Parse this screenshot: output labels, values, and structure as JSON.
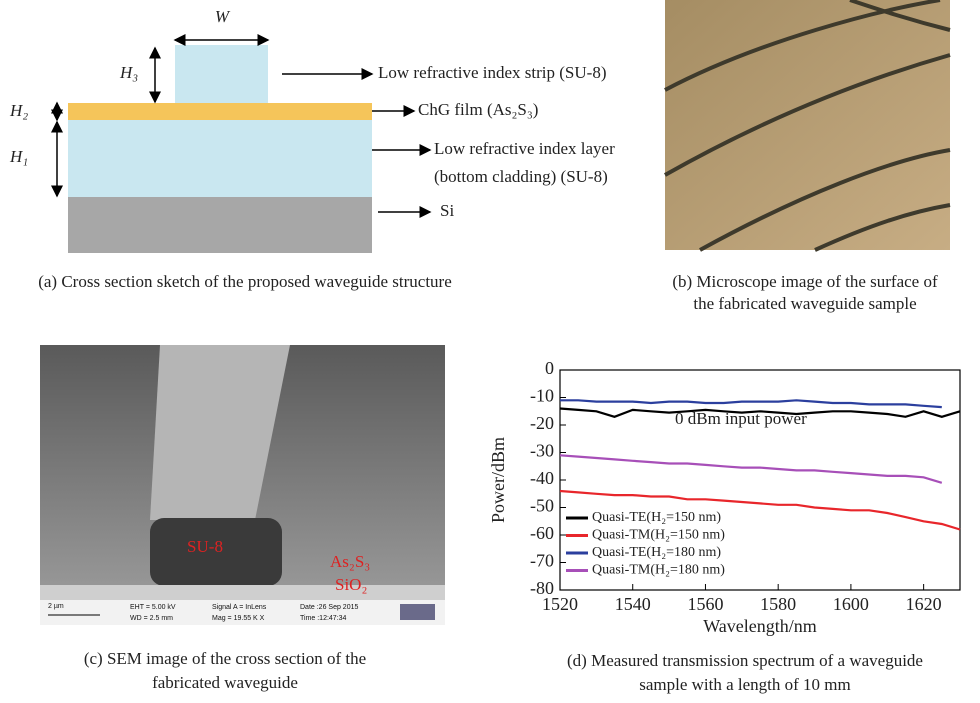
{
  "panel_a": {
    "dimension_labels": {
      "width": "W",
      "strip_height": "H₃",
      "film_height": "H₂",
      "layer_height": "H₁"
    },
    "annotations": [
      "Low refractive index strip (SU-8)",
      "ChG film (As₂S₃)",
      "Low refractive index layer",
      "(bottom cladding) (SU-8)",
      "Si"
    ],
    "caption": "(a) Cross section sketch of the proposed waveguide structure"
  },
  "panel_b": {
    "caption_lines": [
      "(b) Microscope image of the surface of",
      "the fabricated waveguide sample"
    ]
  },
  "panel_c": {
    "labels": [
      "SU-8",
      "As₂S₃",
      "SiO₂"
    ],
    "info_bar": [
      "2 µm",
      "EHT = 5.00 kV",
      "WD = 2.5 mm",
      "Signal A = InLens",
      "Mag = 19.55 K X",
      "Date :26 Sep 2015",
      "Time :12:47:34"
    ],
    "caption_lines": [
      "(c) SEM image of the cross section of the",
      "fabricated waveguide"
    ]
  },
  "panel_d": {
    "caption_lines": [
      "(d) Measured transmission spectrum of a waveguide",
      "sample with a length of 10 mm"
    ]
  },
  "chart_data": {
    "type": "line",
    "xlabel": "Wavelength/nm",
    "ylabel": "Power/dBm",
    "annotation": "0 dBm input power",
    "x": [
      1520,
      1525,
      1530,
      1535,
      1540,
      1545,
      1550,
      1555,
      1560,
      1565,
      1570,
      1575,
      1580,
      1585,
      1590,
      1595,
      1600,
      1605,
      1610,
      1615,
      1620,
      1625,
      1630
    ],
    "series": [
      {
        "name": "Quasi-TE(H₂=150 nm)",
        "color": "#000000",
        "values": [
          -14,
          -14.5,
          -15,
          -17,
          -14.5,
          -15,
          -15.5,
          -15,
          -14.5,
          -15,
          -15.5,
          -15,
          -15.5,
          -16,
          -15.5,
          -15,
          -15,
          -15.5,
          -16,
          -17,
          -15,
          -17,
          -15
        ]
      },
      {
        "name": "Quasi-TM(H₂=150 nm)",
        "color": "#e8262b",
        "values": [
          -44,
          -44.5,
          -45,
          -45.5,
          -45.5,
          -46,
          -46,
          -47,
          -47,
          -47.5,
          -48,
          -48.5,
          -49,
          -49,
          -50,
          -50.5,
          -51,
          -51,
          -52,
          -53.5,
          -55,
          -56,
          -58
        ]
      },
      {
        "name": "Quasi-TE(H₂=180 nm)",
        "color": "#2b3f9e",
        "values": [
          -11,
          -11,
          -11.5,
          -11.5,
          -11.5,
          -12,
          -11.5,
          -11.5,
          -12,
          -12,
          -11.5,
          -11.5,
          -11.5,
          -11,
          -11.5,
          -12,
          -12,
          -12.5,
          -12.5,
          -12.5,
          -13,
          -13.5,
          null
        ]
      },
      {
        "name": "Quasi-TM(H₂=180 nm)",
        "color": "#a74fb8",
        "values": [
          -31,
          -31.5,
          -32,
          -32.5,
          -33,
          -33.5,
          -34,
          -34,
          -34.5,
          -35,
          -35.5,
          -35.5,
          -36,
          -36.5,
          -36.5,
          -37,
          -37.5,
          -38,
          -38.5,
          -38.5,
          -39,
          -41,
          null
        ]
      }
    ],
    "xlim": [
      1520,
      1630
    ],
    "ylim": [
      -80,
      0
    ],
    "xticks": [
      1520,
      1540,
      1560,
      1580,
      1600,
      1620
    ],
    "yticks": [
      0,
      -10,
      -20,
      -30,
      -40,
      -50,
      -60,
      -70,
      -80
    ],
    "legend": "lower left"
  }
}
